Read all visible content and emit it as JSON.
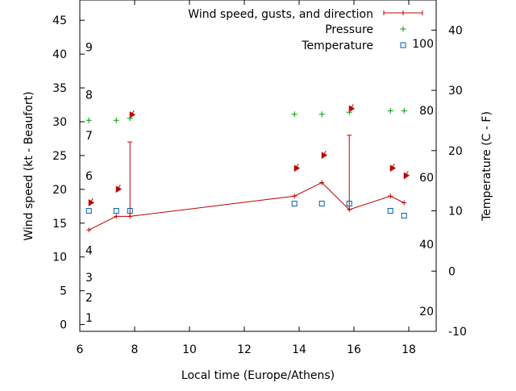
{
  "chart_data": {
    "type": "line",
    "xlabel": "Local time (Europe/Athens)",
    "ylabel_left": "Wind speed (kt - Beaufort)",
    "ylabel_right": "Temperature (C - F)",
    "xlim": [
      6,
      19
    ],
    "ylim_left": [
      -1,
      48
    ],
    "ylim_right_c": [
      -10,
      45
    ],
    "x_ticks": [
      6,
      8,
      10,
      12,
      14,
      16,
      18
    ],
    "y_ticks_left": [
      0,
      5,
      10,
      15,
      20,
      25,
      30,
      35,
      40,
      45
    ],
    "y_ticks_right_c": [
      -10,
      0,
      10,
      20,
      30,
      40
    ],
    "fahrenheit_labels": [
      {
        "value": 20,
        "temp_c": -6.67
      },
      {
        "value": 40,
        "temp_c": 4.44
      },
      {
        "value": 60,
        "temp_c": 15.56
      },
      {
        "value": 80,
        "temp_c": 26.67
      },
      {
        "value": 100,
        "temp_c": 37.78
      }
    ],
    "beaufort_labels": [
      {
        "value": "1",
        "kt": 1
      },
      {
        "value": "2",
        "kt": 4
      },
      {
        "value": "3",
        "kt": 7
      },
      {
        "value": "4",
        "kt": 11
      },
      {
        "value": "6",
        "kt": 22
      },
      {
        "value": "7",
        "kt": 28
      },
      {
        "value": "8",
        "kt": 34
      },
      {
        "value": "9",
        "kt": 41
      }
    ],
    "legend": {
      "placement": "top-right",
      "entries": [
        {
          "label": "Wind speed, gusts, and direction",
          "color": "#c00000",
          "marker": "line-plus"
        },
        {
          "label": "Pressure",
          "color": "#00a000",
          "marker": "plus"
        },
        {
          "label": "Temperature",
          "color": "#0060ad",
          "marker": "square"
        }
      ]
    },
    "series": [
      {
        "name": "Wind speed, gusts, and direction",
        "color": "#c00000",
        "x": [
          6.33,
          7.33,
          7.83,
          13.83,
          14.83,
          15.83,
          17.33,
          17.83
        ],
        "y": [
          14,
          16,
          16,
          19,
          21,
          17,
          19,
          18
        ],
        "gusts": [
          null,
          null,
          27,
          null,
          null,
          28,
          null,
          null
        ],
        "direction_arrows": [
          {
            "x": 6.33,
            "y": 17.6
          },
          {
            "x": 7.33,
            "y": 19.6
          },
          {
            "x": 7.83,
            "y": 30.6
          },
          {
            "x": 13.83,
            "y": 22.7
          },
          {
            "x": 14.83,
            "y": 24.6
          },
          {
            "x": 15.83,
            "y": 31.5
          },
          {
            "x": 17.33,
            "y": 22.7
          },
          {
            "x": 17.83,
            "y": 21.6
          }
        ]
      },
      {
        "name": "Pressure",
        "color": "#00a000",
        "x": [
          6.33,
          7.33,
          7.83,
          13.83,
          14.83,
          15.83,
          17.33,
          17.83
        ],
        "y": [
          30.2,
          30.2,
          30.5,
          31.1,
          31.1,
          31.4,
          31.6,
          31.6
        ]
      },
      {
        "name": "Temperature",
        "color": "#0060ad",
        "x": [
          6.33,
          7.33,
          7.83,
          13.83,
          14.83,
          15.83,
          17.33,
          17.83
        ],
        "y": [
          10.0,
          10.0,
          10.0,
          11.2,
          11.2,
          11.2,
          10.0,
          9.2
        ]
      }
    ]
  }
}
